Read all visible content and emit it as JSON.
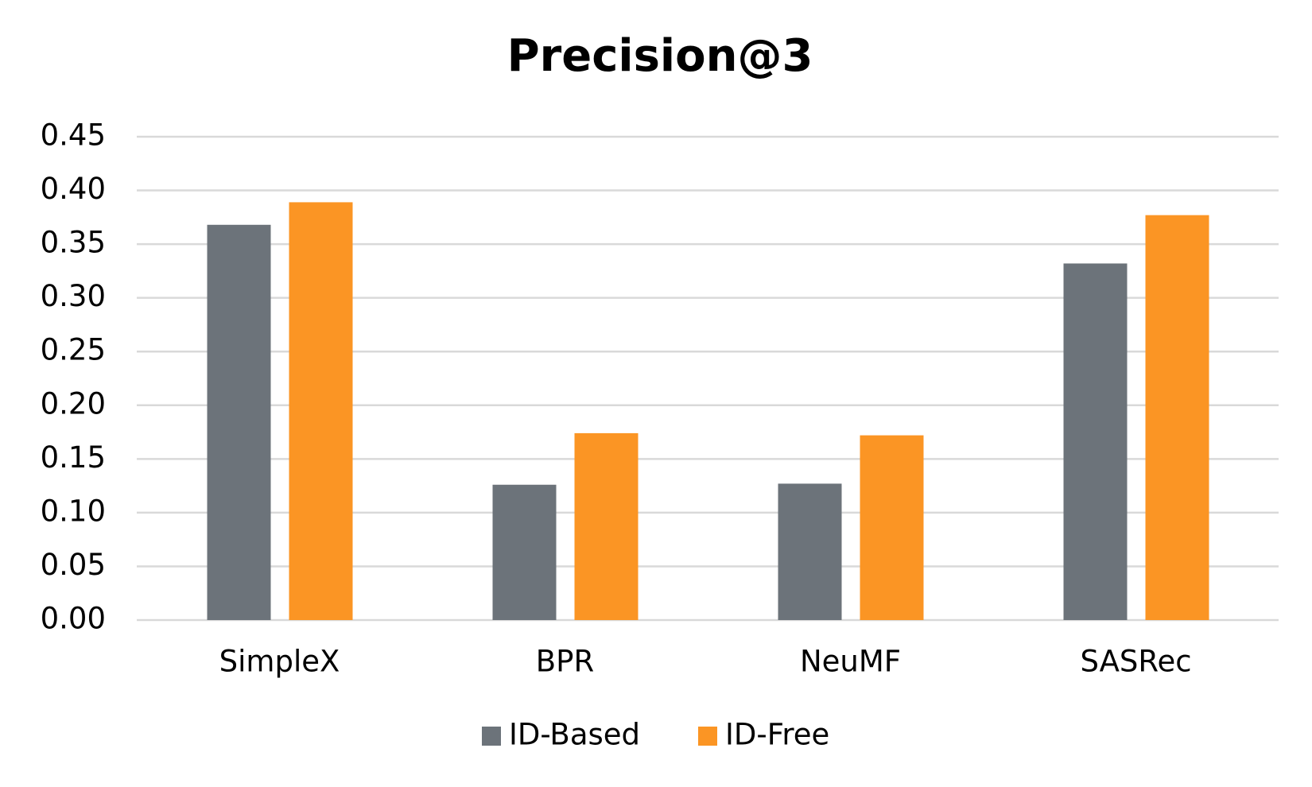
{
  "chart_data": {
    "type": "bar",
    "title": "Precision@3",
    "categories": [
      "SimpleX",
      "BPR",
      "NeuMF",
      "SASRec"
    ],
    "series": [
      {
        "name": "ID-Based",
        "color": "#6c737a",
        "values": [
          0.368,
          0.126,
          0.127,
          0.332
        ]
      },
      {
        "name": "ID-Free",
        "color": "#fb9524",
        "values": [
          0.389,
          0.174,
          0.172,
          0.377
        ]
      }
    ],
    "ylim": [
      0,
      0.45
    ],
    "yticks": [
      {
        "value": 0,
        "label": "0.00"
      },
      0.05,
      {
        "value": 0.1,
        "label": "0.10"
      },
      0.15,
      {
        "value": 0.2,
        "label": "0.20"
      },
      0.25,
      {
        "value": 0.3,
        "label": "0.30"
      },
      0.35,
      {
        "value": 0.4,
        "label": "0.40"
      },
      0.45
    ],
    "grid": true,
    "legend": "bottom"
  }
}
